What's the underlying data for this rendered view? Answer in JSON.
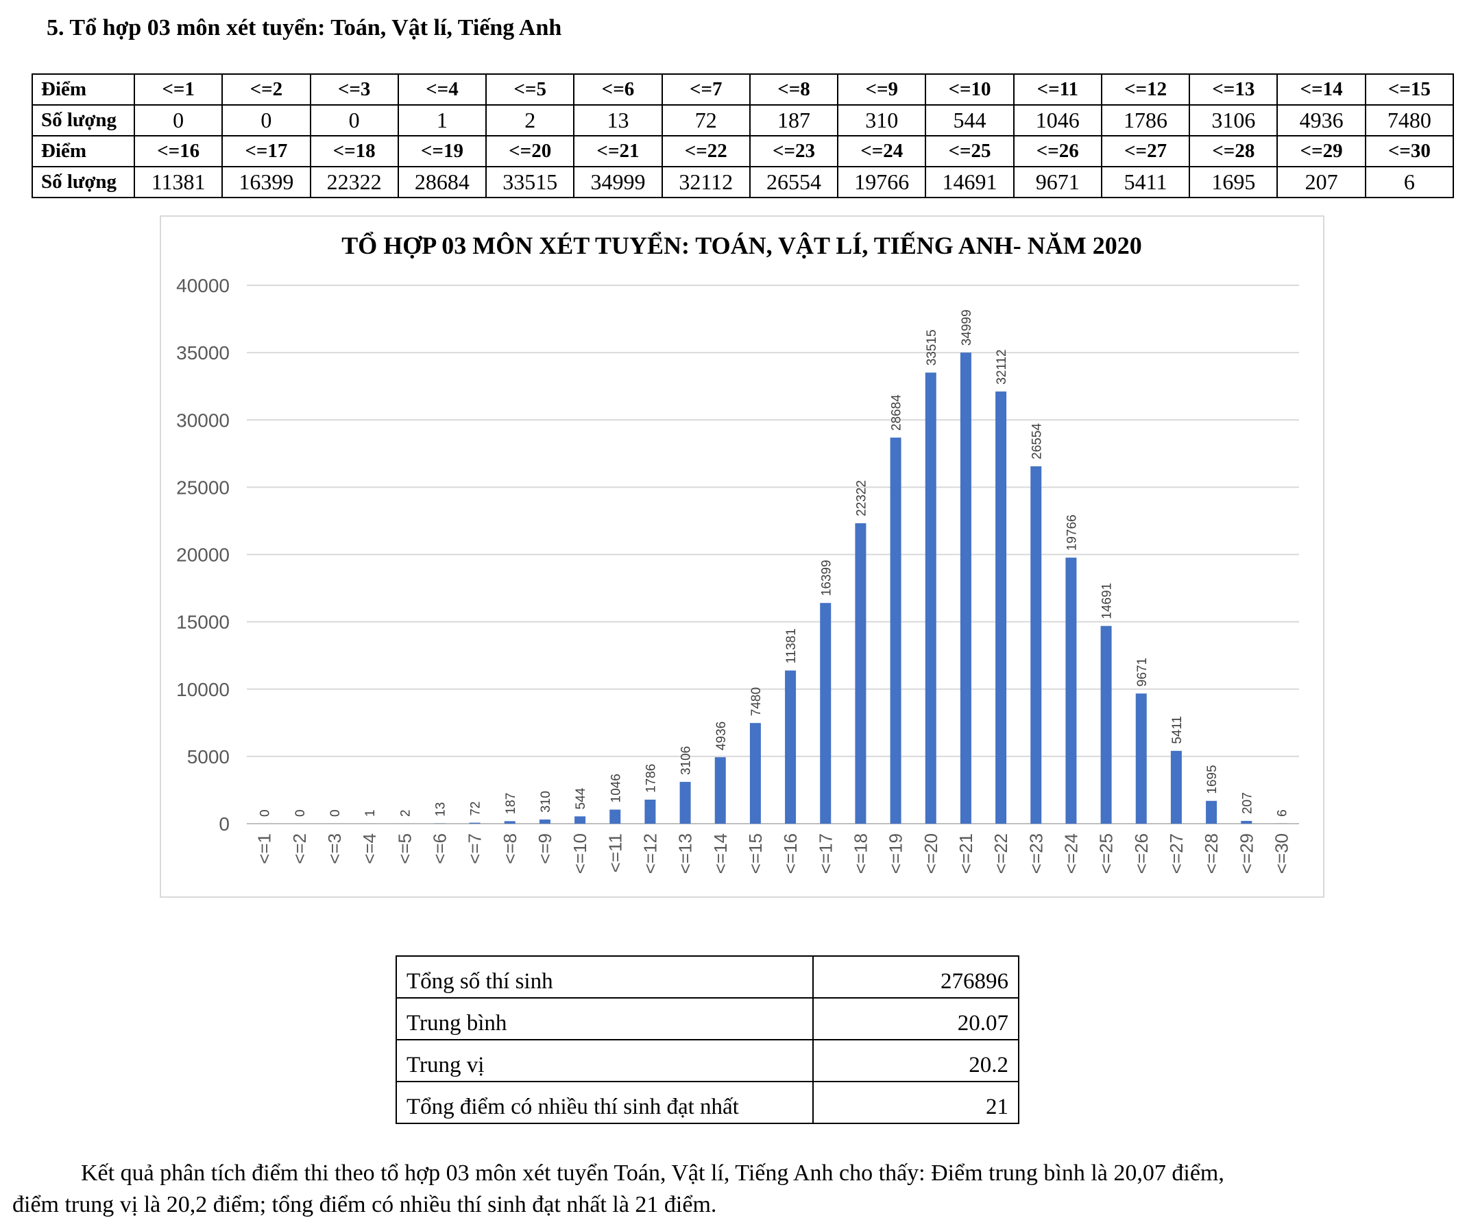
{
  "heading": "5. Tổ hợp 03 môn xét tuyển: Toán, Vật lí, Tiếng Anh",
  "table": {
    "label_score": "Điểm",
    "label_count": "Số lượng",
    "row1_scores": [
      "<=1",
      "<=2",
      "<=3",
      "<=4",
      "<=5",
      "<=6",
      "<=7",
      "<=8",
      "<=9",
      "<=10",
      "<=11",
      "<=12",
      "<=13",
      "<=14",
      "<=15"
    ],
    "row1_counts": [
      "0",
      "0",
      "0",
      "1",
      "2",
      "13",
      "72",
      "187",
      "310",
      "544",
      "1046",
      "1786",
      "3106",
      "4936",
      "7480"
    ],
    "row2_scores": [
      "<=16",
      "<=17",
      "<=18",
      "<=19",
      "<=20",
      "<=21",
      "<=22",
      "<=23",
      "<=24",
      "<=25",
      "<=26",
      "<=27",
      "<=28",
      "<=29",
      "<=30"
    ],
    "row2_counts": [
      "11381",
      "16399",
      "22322",
      "28684",
      "33515",
      "34999",
      "32112",
      "26554",
      "19766",
      "14691",
      "9671",
      "5411",
      "1695",
      "207",
      "6"
    ]
  },
  "chart_data": {
    "type": "bar",
    "title": "TỔ HỢP 03 MÔN XÉT TUYỂN: TOÁN, VẬT LÍ, TIẾNG ANH- NĂM 2020",
    "xlabel": "",
    "ylabel": "",
    "categories": [
      "<=1",
      "<=2",
      "<=3",
      "<=4",
      "<=5",
      "<=6",
      "<=7",
      "<=8",
      "<=9",
      "<=10",
      "<=11",
      "<=12",
      "<=13",
      "<=14",
      "<=15",
      "<=16",
      "<=17",
      "<=18",
      "<=19",
      "<=20",
      "<=21",
      "<=22",
      "<=23",
      "<=24",
      "<=25",
      "<=26",
      "<=27",
      "<=28",
      "<=29",
      "<=30"
    ],
    "values": [
      0,
      0,
      0,
      1,
      2,
      13,
      72,
      187,
      310,
      544,
      1046,
      1786,
      3106,
      4936,
      7480,
      11381,
      16399,
      22322,
      28684,
      33515,
      34999,
      32112,
      26554,
      19766,
      14691,
      9671,
      5411,
      1695,
      207,
      6
    ],
    "ylim": [
      0,
      40000
    ],
    "yticks": [
      0,
      5000,
      10000,
      15000,
      20000,
      25000,
      30000,
      35000,
      40000
    ],
    "grid": true,
    "bar_color": "#4472c4"
  },
  "stats": [
    {
      "label": "Tổng số thí sinh",
      "value": "276896"
    },
    {
      "label": "Trung bình",
      "value": "20.07"
    },
    {
      "label": "Trung vị",
      "value": "20.2"
    },
    {
      "label": "Tổng điểm có nhiều thí sinh đạt nhất",
      "value": "21"
    }
  ],
  "paragraph": {
    "line1": "Kết quả phân tích điểm thi theo tổ hợp 03 môn xét tuyển Toán, Vật lí, Tiếng Anh cho thấy: Điểm trung bình là 20,07 điểm,",
    "line2": "điểm trung vị là 20,2 điểm; tổng điểm có nhiều thí sinh đạt nhất là 21 điểm."
  }
}
